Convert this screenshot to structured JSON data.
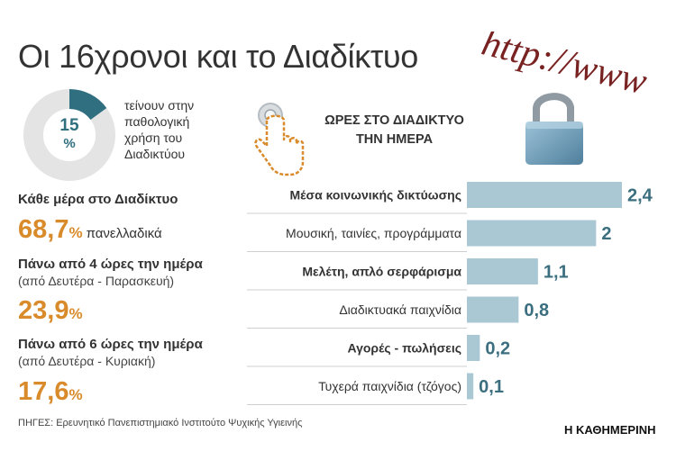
{
  "title": "Οι 16χρονοι και το Διαδίκτυο",
  "url_graphic_text": "http://www",
  "donut": {
    "value": 15,
    "pct_symbol": "%",
    "caption_lines": [
      "τείνουν στην",
      "παθολογική",
      "χρήση του",
      "Διαδικτύου"
    ]
  },
  "chart_header_lines": [
    "ΩΡΕΣ ΣΤΟ ΔΙΑΔΙΚΤΥΟ",
    "ΤΗΝ ΗΜΕΡΑ"
  ],
  "stats": [
    {
      "label": "Κάθε μέρα στο Διαδίκτυο",
      "sub": "",
      "value": "68,7",
      "pct": "%",
      "suffix": "πανελλαδικά"
    },
    {
      "label": "Πάνω από 4 ώρες την ημέρα",
      "sub": "(από Δευτέρα - Παρασκευή)",
      "value": "23,9",
      "pct": "%",
      "suffix": ""
    },
    {
      "label": "Πάνω από 6 ώρες την ημέρα",
      "sub": "(από Δευτέρα - Κυριακή)",
      "value": "17,6",
      "pct": "%",
      "suffix": ""
    }
  ],
  "chart_data": {
    "type": "bar",
    "orientation": "horizontal",
    "title": "ΩΡΕΣ ΣΤΟ ΔΙΑΔΙΚΤΥΟ ΤΗΝ ΗΜΕΡΑ",
    "categories": [
      "Μέσα κοινωνικής δικτύωσης",
      "Μουσική, ταινίες, προγράμματα",
      "Μελέτη, απλό σερφάρισμα",
      "Διαδικτυακά παιχνίδια",
      "Αγορές - πωλήσεις",
      "Τυχερά παιχνίδια (τζόγος)"
    ],
    "values": [
      2.4,
      2,
      1.1,
      0.8,
      0.2,
      0.1
    ],
    "value_labels": [
      "2,4",
      "2",
      "1,1",
      "0,8",
      "0,2",
      "0,1"
    ],
    "bold_labels": [
      true,
      false,
      true,
      false,
      true,
      false
    ],
    "xlim": [
      0,
      2.4
    ],
    "bar_color": "#a9c8d4",
    "value_color": "#3b6f7f",
    "grid": false
  },
  "source": "ΠΗΓΕΣ: Ερευνητικό Πανεπιστημιακό Ινστιτούτο Ψυχικής Υγιεινής",
  "brand": "Η ΚΑΘΗΜΕΡΙΝΗ",
  "colors": {
    "accent_orange": "#d98b2c",
    "teal": "#2f6f80",
    "donut_rest": "#e4e4e4",
    "bar": "#a9c8d4",
    "url_red": "#6e1010"
  }
}
